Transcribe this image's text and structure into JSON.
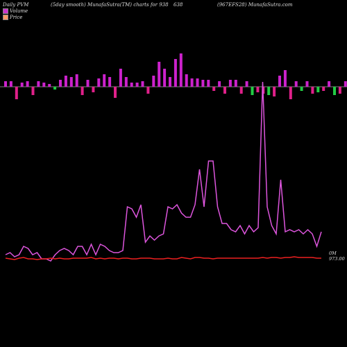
{
  "header": {
    "left": "Daily PVM",
    "mid": "(5day smooth) MunafaSutra(TM) charts for 938",
    "num": "638",
    "right": "(967EFS28) MunafaSutra.com"
  },
  "legend": {
    "volume_label": "Volume",
    "price_label": "Price",
    "volume_color": "#cc33cc",
    "price_color": "#ff9966"
  },
  "labels": {
    "volume_end": "0M",
    "price_end": "973.00"
  },
  "colors": {
    "bar_up": "#cc22cc",
    "bar_down": "#e0208a",
    "bar_green": "#22cc44",
    "volume_line": "#dd55dd",
    "price_line": "#ee2020"
  },
  "chart_data": {
    "type": "bar+line",
    "series": [
      {
        "name": "Volume",
        "bars": [
          4,
          4,
          -9,
          3,
          4,
          -6,
          4,
          3,
          2,
          -2,
          5,
          8,
          7,
          9,
          -6,
          5,
          -4,
          6,
          9,
          7,
          -8,
          13,
          7,
          3,
          3,
          4,
          -5,
          8,
          18,
          13,
          7,
          20,
          24,
          9,
          6,
          6,
          5,
          5,
          -3,
          4,
          -5,
          5,
          5,
          -5,
          4,
          -6,
          -4,
          -5,
          -6,
          -7,
          8,
          12,
          -9,
          4,
          -3,
          4,
          -5,
          -4,
          -3,
          4,
          -6,
          -5,
          4,
          -8,
          -4,
          35,
          30,
          26,
          8,
          6,
          4,
          -5,
          5,
          -5,
          -5,
          6,
          4,
          -5,
          4,
          -3,
          -5,
          -8,
          4,
          -3,
          -6,
          -6,
          -5,
          -7,
          -4,
          -3,
          -5,
          -4,
          -6,
          -5,
          -6,
          -4,
          -5,
          -7,
          -6,
          -3
        ],
        "line": [
          5,
          6,
          4,
          5,
          9,
          8,
          5,
          6,
          3,
          3,
          2,
          5,
          7,
          8,
          7,
          5,
          9,
          9,
          5,
          10,
          5,
          10,
          9,
          7,
          6,
          6,
          7,
          28,
          27,
          23,
          29,
          11,
          14,
          12,
          14,
          15,
          28,
          27,
          29,
          25,
          23,
          23,
          29,
          46,
          28,
          50,
          50,
          28,
          20,
          20,
          17,
          16,
          19,
          15,
          19,
          16,
          18,
          88,
          28,
          19,
          15,
          41,
          16,
          17,
          16,
          17,
          15,
          17,
          15,
          9,
          16
        ]
      },
      {
        "name": "Price",
        "line": [
          10,
          9,
          8,
          10,
          11,
          9,
          9,
          8,
          9,
          9,
          10,
          9,
          10,
          9,
          9,
          10,
          10,
          10,
          10,
          11,
          9,
          10,
          9,
          10,
          10,
          9,
          10,
          10,
          9,
          9,
          10,
          10,
          10,
          9,
          9,
          9,
          10,
          9,
          9,
          11,
          10,
          9,
          11,
          11,
          10,
          10,
          9,
          10,
          10,
          10,
          10,
          10,
          10,
          10,
          10,
          10,
          10,
          11,
          10,
          11,
          11,
          10,
          11,
          11,
          12,
          11,
          11,
          11,
          11,
          10,
          10
        ]
      }
    ]
  }
}
